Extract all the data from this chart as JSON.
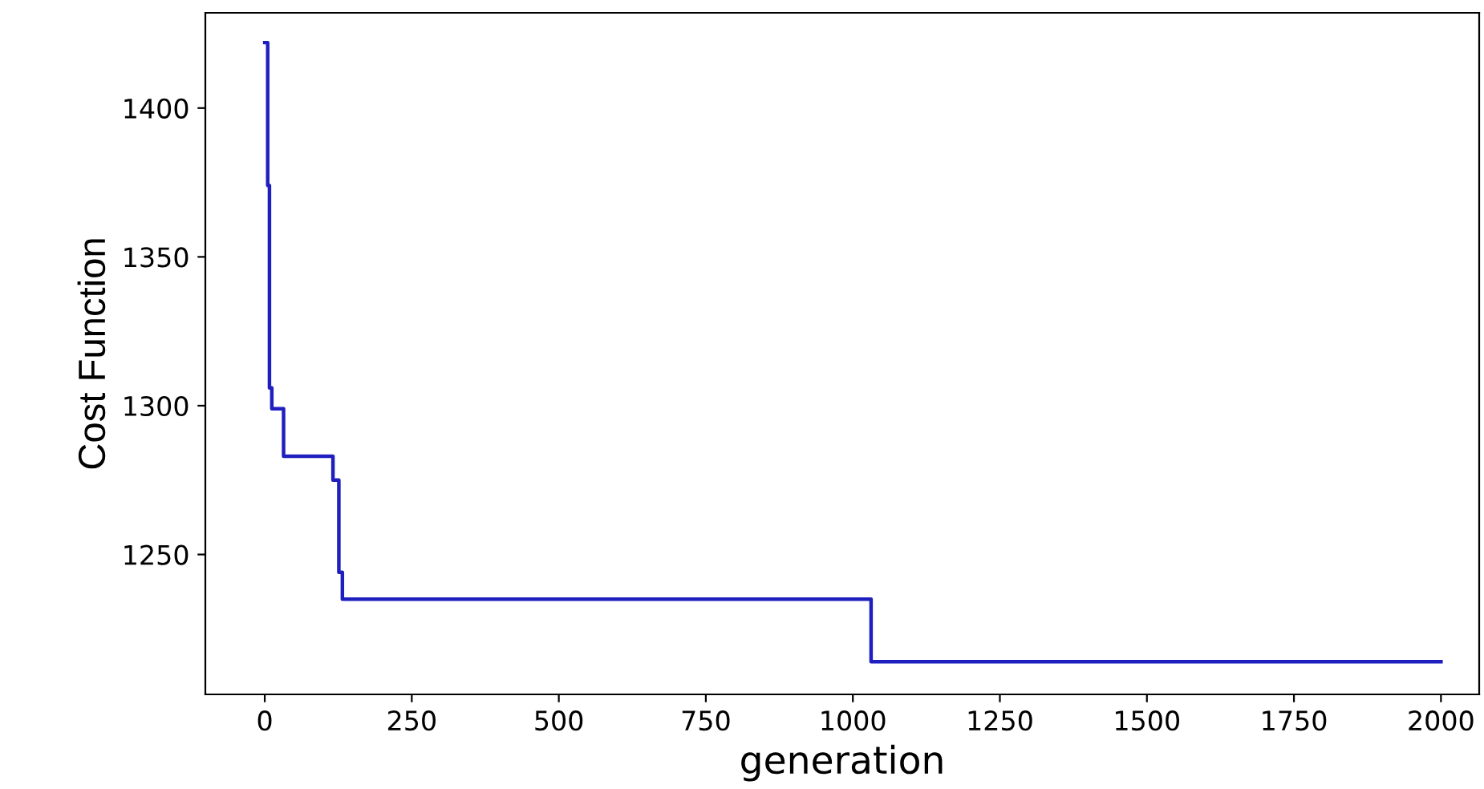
{
  "chart_data": {
    "type": "step",
    "xlabel": "generation",
    "ylabel": "Cost Function",
    "x": [
      0,
      5,
      8,
      12,
      32,
      116,
      126,
      132,
      1031,
      2000
    ],
    "series": [
      {
        "color": "#1f1fbf",
        "values": [
          1422,
          1374,
          1306,
          1299,
          1283,
          1275,
          1244,
          1235,
          1214,
          1214
        ]
      }
    ],
    "xlim": [
      -101,
      2065
    ],
    "ylim": [
      1203,
      1432
    ],
    "xticks": [
      0,
      250,
      500,
      750,
      1000,
      1250,
      1500,
      1750,
      2000
    ],
    "yticks": [
      1250,
      1300,
      1350,
      1400
    ],
    "grid": false,
    "legend": false
  }
}
